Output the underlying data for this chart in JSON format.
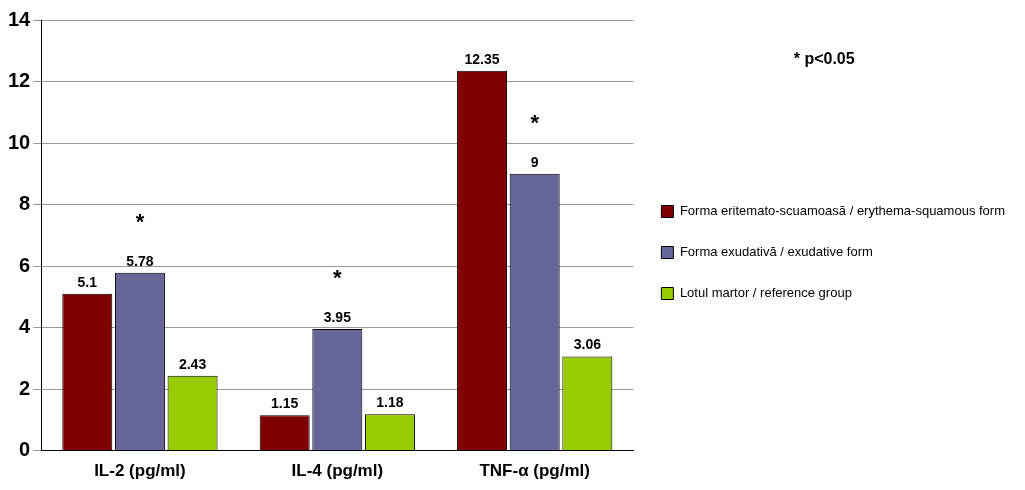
{
  "chart_data": {
    "type": "bar",
    "categories": [
      "IL-2 (pg/ml)",
      "IL-4 (pg/ml)",
      "TNF-α (pg/ml)"
    ],
    "series": [
      {
        "name": "Forma eritemato-scuamoasă / erythema-squamous form",
        "color": "#800000",
        "values": [
          5.1,
          1.15,
          12.35
        ]
      },
      {
        "name": "Forma exudativă / exudative form",
        "color": "#666699",
        "values": [
          5.78,
          3.95,
          9
        ]
      },
      {
        "name": "Lotul martor / reference group",
        "color": "#99cc00",
        "values": [
          2.43,
          1.18,
          3.06
        ]
      }
    ],
    "ylim": [
      0,
      14
    ],
    "yticks": [
      0,
      2,
      4,
      6,
      8,
      10,
      12,
      14
    ],
    "grid": "y",
    "legend": "right",
    "data_labels": true,
    "annotations": [
      "* p<0.05",
      {
        "text": "*",
        "x": "IL-2 (pg/ml)",
        "y": 5.78
      },
      {
        "text": "*",
        "x": "IL-4 (pg/ml)",
        "y": 3.95
      },
      {
        "text": "*",
        "x": "TNF-α (pg/ml)",
        "y": 9
      }
    ]
  }
}
